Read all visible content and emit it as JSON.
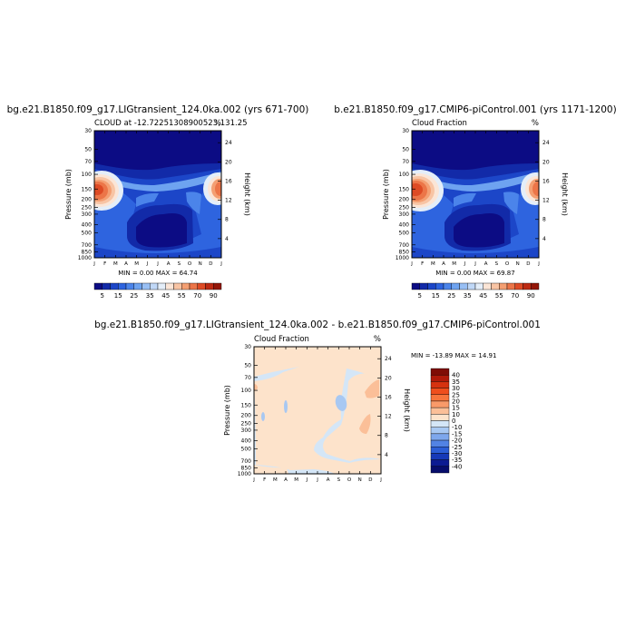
{
  "chart_data": [
    {
      "type": "heatmap",
      "title": "bg.e21.B1850.f09_g17.LIGtransient_124.0ka.002 (yrs 671-700)",
      "subtitle_left": "CLOUD at -12.72251308900523,131.25",
      "subtitle_right": "%",
      "xlabel": "",
      "ylabel": "Pressure (mb)",
      "ylabel_right": "Height (km)",
      "x_ticks": [
        "J",
        "F",
        "M",
        "A",
        "M",
        "J",
        "J",
        "A",
        "S",
        "O",
        "N",
        "D",
        "J"
      ],
      "y_ticks": [
        "30",
        "50",
        "70",
        "100",
        "150",
        "200",
        "250",
        "300",
        "400",
        "500",
        "700",
        "850",
        "1000"
      ],
      "y_ticks_right": [
        "24",
        "20",
        "16",
        "12",
        "8",
        "4"
      ],
      "min_max_text": "MIN =   0.00 MAX =  64.74",
      "min": 0.0,
      "max": 64.74,
      "colorbar_labels": [
        "5",
        "15",
        "25",
        "35",
        "45",
        "55",
        "70",
        "90"
      ],
      "colors": [
        "#0c0c84",
        "#122aa8",
        "#1c46c8",
        "#2e64df",
        "#4b84ea",
        "#6ea3f0",
        "#98bff4",
        "#c0d8f7",
        "#e4eef9",
        "#fbe5d6",
        "#f8c4a4",
        "#f49f72",
        "#ec7548",
        "#de4b25",
        "#bd2a12",
        "#941608"
      ]
    },
    {
      "type": "heatmap",
      "title": "b.e21.B1850.f09_g17.CMIP6-piControl.001 (yrs 1171-1200)",
      "subtitle_left": "Cloud Fraction",
      "subtitle_right": "%",
      "xlabel": "",
      "ylabel": "Pressure (mb)",
      "ylabel_right": "Height (km)",
      "x_ticks": [
        "J",
        "F",
        "M",
        "A",
        "M",
        "J",
        "J",
        "A",
        "S",
        "O",
        "N",
        "D",
        "J"
      ],
      "y_ticks": [
        "30",
        "50",
        "70",
        "100",
        "150",
        "200",
        "250",
        "300",
        "400",
        "500",
        "700",
        "850",
        "1000"
      ],
      "y_ticks_right": [
        "24",
        "20",
        "16",
        "12",
        "8",
        "4"
      ],
      "min_max_text": "MIN =   0.00 MAX =  69.87",
      "min": 0.0,
      "max": 69.87,
      "colorbar_labels": [
        "5",
        "15",
        "25",
        "35",
        "45",
        "55",
        "70",
        "90"
      ]
    },
    {
      "type": "heatmap",
      "title": "bg.e21.B1850.f09_g17.LIGtransient_124.0ka.002 - b.e21.B1850.f09_g17.CMIP6-piControl.001",
      "subtitle_left": "Cloud Fraction",
      "subtitle_right": "%",
      "xlabel": "",
      "ylabel": "Pressure (mb)",
      "ylabel_right": "Height (km)",
      "x_ticks": [
        "J",
        "F",
        "M",
        "A",
        "M",
        "J",
        "J",
        "A",
        "S",
        "O",
        "N",
        "D",
        "J"
      ],
      "y_ticks": [
        "30",
        "50",
        "70",
        "100",
        "150",
        "200",
        "250",
        "300",
        "400",
        "500",
        "700",
        "850",
        "1000"
      ],
      "y_ticks_right": [
        "24",
        "20",
        "16",
        "12",
        "8",
        "4"
      ],
      "min_max_text": "MIN = -13.89 MAX =  14.91",
      "min": -13.89,
      "max": 14.91,
      "colorbar_labels": [
        "40",
        "35",
        "30",
        "25",
        "20",
        "15",
        "10",
        "0",
        "-10",
        "-15",
        "-20",
        "-25",
        "-30",
        "-35",
        "-40"
      ],
      "colors": [
        "#7f0d05",
        "#b01a09",
        "#d6320f",
        "#ef4e1c",
        "#f7743b",
        "#f99a69",
        "#fbbf98",
        "#fde3cb",
        "#d4e6f7",
        "#a8c8f2",
        "#7ea7ec",
        "#5283e4",
        "#2c5ed6",
        "#1639b8",
        "#0c1b92",
        "#070d6b"
      ]
    }
  ]
}
